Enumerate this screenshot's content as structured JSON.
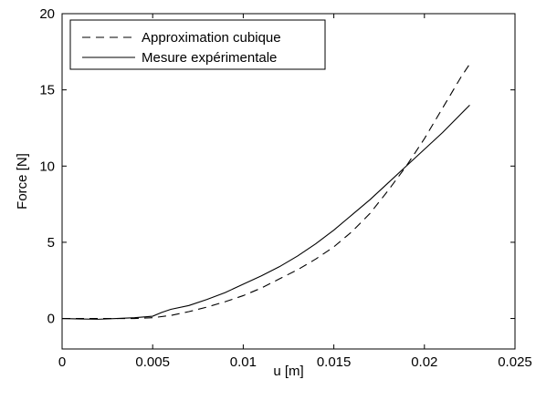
{
  "chart_data": {
    "type": "line",
    "title": "",
    "xlabel": "u [m]",
    "ylabel": "Force [N]",
    "xlim": [
      0,
      0.025
    ],
    "ylim": [
      -2,
      20
    ],
    "xticks": [
      0,
      0.005,
      0.01,
      0.015,
      0.02,
      0.025
    ],
    "xtick_labels": [
      "0",
      "0.005",
      "0.01",
      "0.015",
      "0.02",
      "0.025"
    ],
    "yticks": [
      0,
      5,
      10,
      15,
      20
    ],
    "ytick_labels": [
      "0",
      "5",
      "10",
      "15",
      "20"
    ],
    "grid": false,
    "legend_position": "top-left",
    "series": [
      {
        "name": "Approximation cubique",
        "style": "dashed",
        "color": "#000000",
        "x": [
          0,
          0.002,
          0.004,
          0.005,
          0.006,
          0.007,
          0.008,
          0.009,
          0.01,
          0.011,
          0.012,
          0.013,
          0.014,
          0.015,
          0.016,
          0.017,
          0.018,
          0.019,
          0.02,
          0.021,
          0.022,
          0.0225
        ],
        "y": [
          0,
          0,
          0,
          0.05,
          0.2,
          0.45,
          0.75,
          1.1,
          1.5,
          2.0,
          2.6,
          3.2,
          3.9,
          4.7,
          5.7,
          6.9,
          8.4,
          10.0,
          11.8,
          13.8,
          15.8,
          16.7
        ]
      },
      {
        "name": "Mesure expérimentale",
        "style": "solid",
        "color": "#000000",
        "x": [
          0,
          0.001,
          0.002,
          0.003,
          0.004,
          0.005,
          0.0055,
          0.006,
          0.007,
          0.008,
          0.009,
          0.01,
          0.011,
          0.012,
          0.013,
          0.014,
          0.015,
          0.016,
          0.017,
          0.018,
          0.019,
          0.02,
          0.021,
          0.022,
          0.0225
        ],
        "y": [
          0,
          -0.03,
          -0.05,
          0,
          0.05,
          0.15,
          0.4,
          0.6,
          0.85,
          1.25,
          1.7,
          2.25,
          2.8,
          3.4,
          4.1,
          4.9,
          5.8,
          6.8,
          7.8,
          8.9,
          10.0,
          11.1,
          12.2,
          13.4,
          14.0
        ]
      }
    ]
  }
}
